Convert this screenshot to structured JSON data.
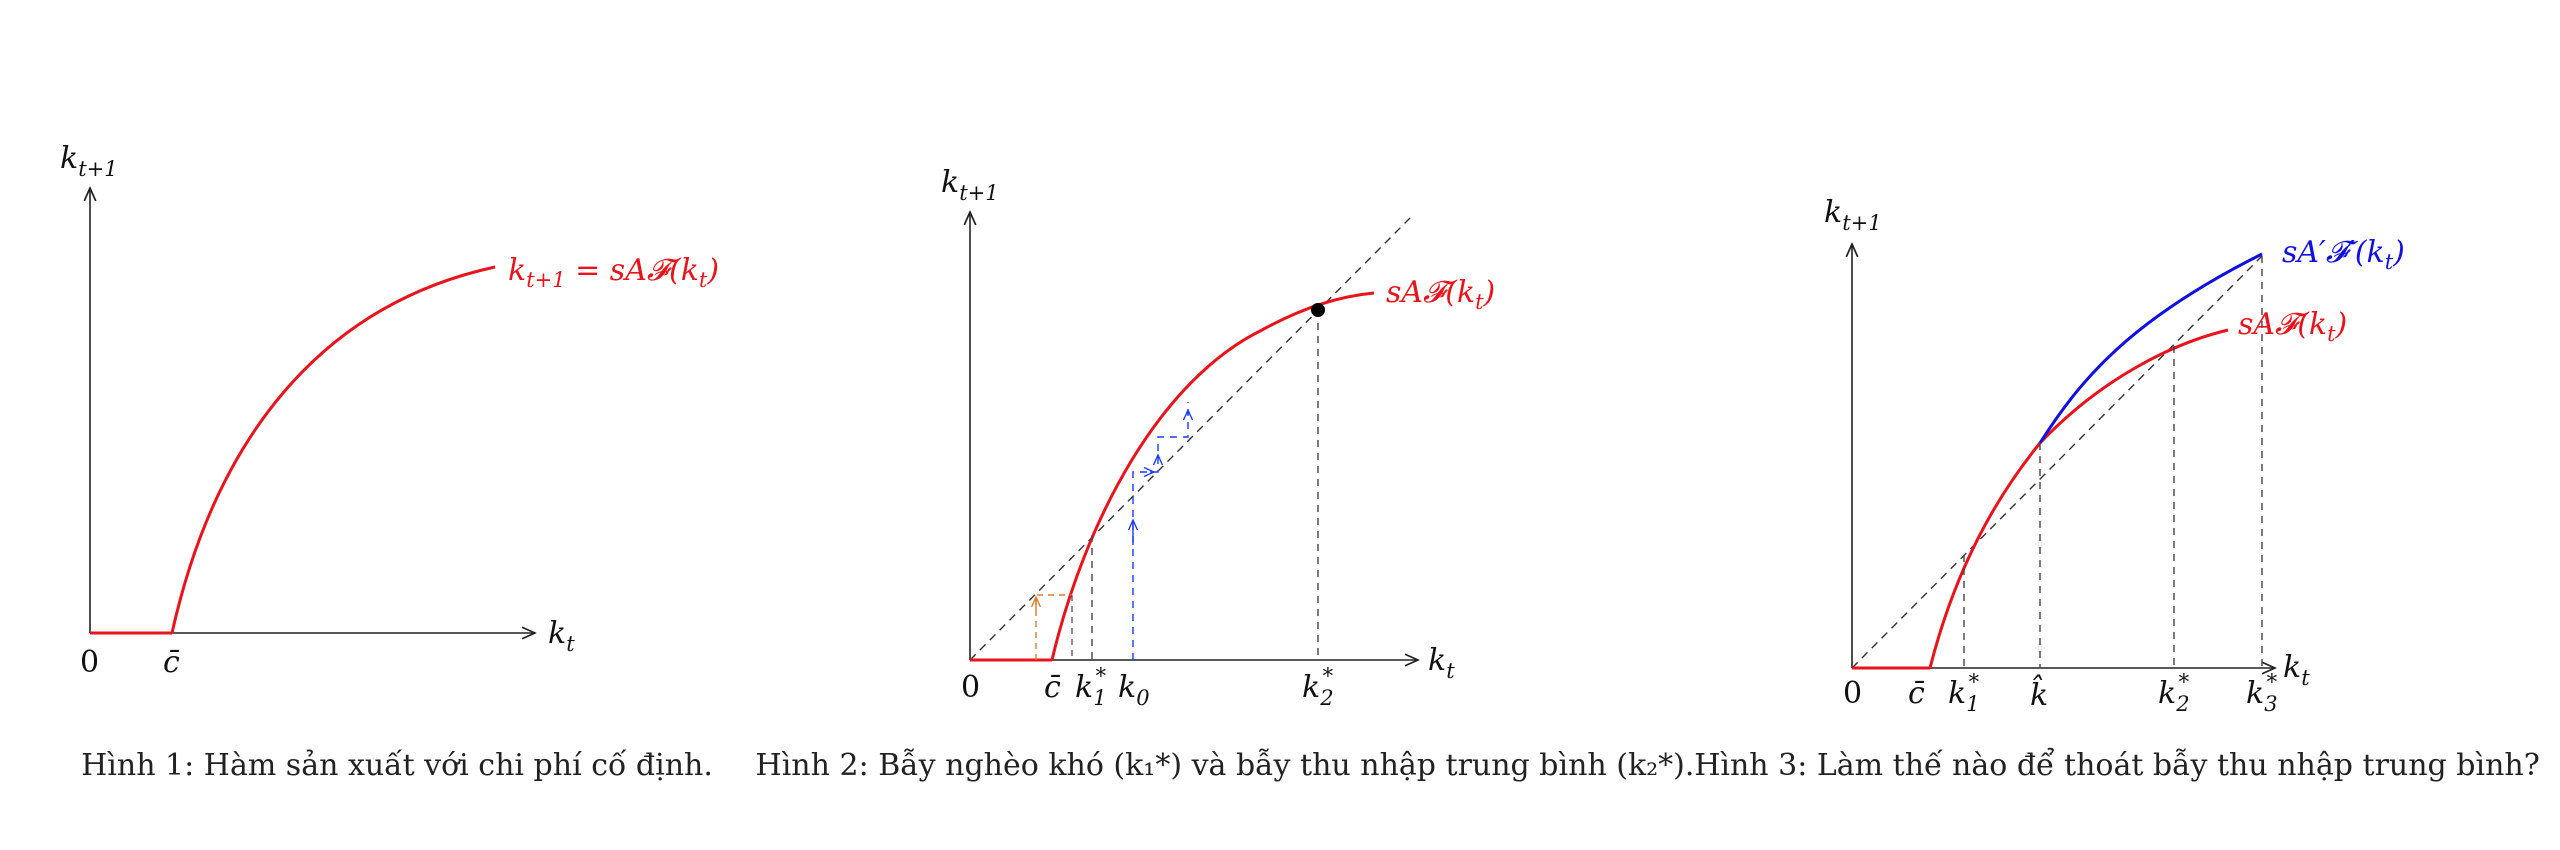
{
  "colors": {
    "production": "#e8141b",
    "improved": "#1010e0",
    "axis": "#222222",
    "guide": "#444444",
    "cobweb_poor": "#1a3cff",
    "cobweb_low": "#e07a2a"
  },
  "figure1": {
    "y_axis_label": "k",
    "y_axis_sub": "t+1",
    "x_axis_label": "k",
    "x_axis_sub": "t",
    "origin_label": "0",
    "cbar_label": "c̄",
    "curve_label": "k",
    "curve_label_sub": "t+1",
    "curve_label_rest": " = sA𝓕(k",
    "curve_label_sub2": "t",
    "curve_label_end": ")",
    "caption": "Hình 1: Hàm sản xuất với chi phí cố định."
  },
  "figure2": {
    "y_axis_label": "k",
    "y_axis_sub": "t+1",
    "x_axis_label": "k",
    "x_axis_sub": "t",
    "origin_label": "0",
    "cbar_label": "c̄",
    "k1_label": "k",
    "k1_sub": "1",
    "k1_sup": "*",
    "k0_label": "k",
    "k0_sub": "0",
    "k2_label": "k",
    "k2_sub": "2",
    "k2_sup": "*",
    "curve_label": "sA𝓕(k",
    "curve_label_sub": "t",
    "curve_label_end": ")",
    "caption": "Hình 2: Bẫy nghèo khó (k₁*) và bẫy thu nhập trung bình (k₂*)."
  },
  "figure3": {
    "y_axis_label": "k",
    "y_axis_sub": "t+1",
    "x_axis_label": "k",
    "x_axis_sub": "t",
    "origin_label": "0",
    "cbar_label": "c̄",
    "k1_label": "k",
    "k1_sub": "1",
    "k1_sup": "*",
    "khat_label": "k̂",
    "k2_label": "k",
    "k2_sub": "2",
    "k2_sup": "*",
    "k3_label": "k",
    "k3_sub": "3",
    "k3_sup": "*",
    "curve_label": "sA𝓕(k",
    "curve_label_sub": "t",
    "curve_label_end": ")",
    "curve2_label": "sA′𝓕′(k",
    "curve2_label_sub": "t",
    "curve2_label_end": ")",
    "caption": "Hình 3: Làm thế nào để thoát bẫy thu nhập trung bình?"
  }
}
